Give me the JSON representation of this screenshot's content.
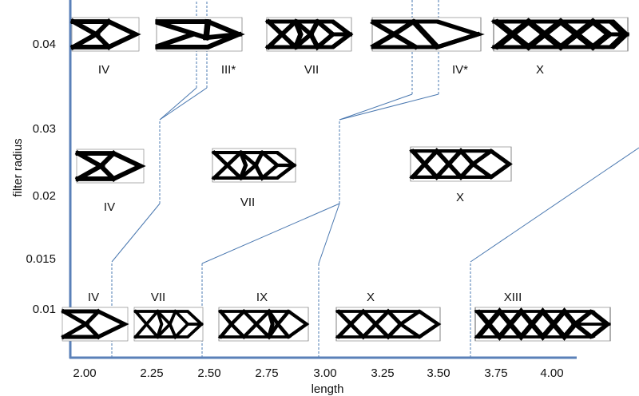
{
  "axes": {
    "xlabel": "length",
    "ylabel": "filter radius",
    "x_ticks": [
      "2.00",
      "2.25",
      "2.50",
      "2.75",
      "3.00",
      "3.25",
      "3.50",
      "3.75",
      "4.00"
    ],
    "y_ticks": [
      "0.04",
      "0.03",
      "0.02",
      "0.015",
      "0.01"
    ],
    "axis_color": "#5a80b8",
    "boundary_color": "#4a78b0"
  },
  "rows": [
    {
      "filter_radius": "0.04",
      "labels": [
        "IV",
        "III*",
        "VII",
        "IV*",
        "X"
      ]
    },
    {
      "filter_radius": "0.025",
      "labels": [
        "IV",
        "VII",
        "X"
      ]
    },
    {
      "filter_radius": "0.01",
      "labels": [
        "IV",
        "VII",
        "IX",
        "X",
        "XIII"
      ]
    }
  ]
}
